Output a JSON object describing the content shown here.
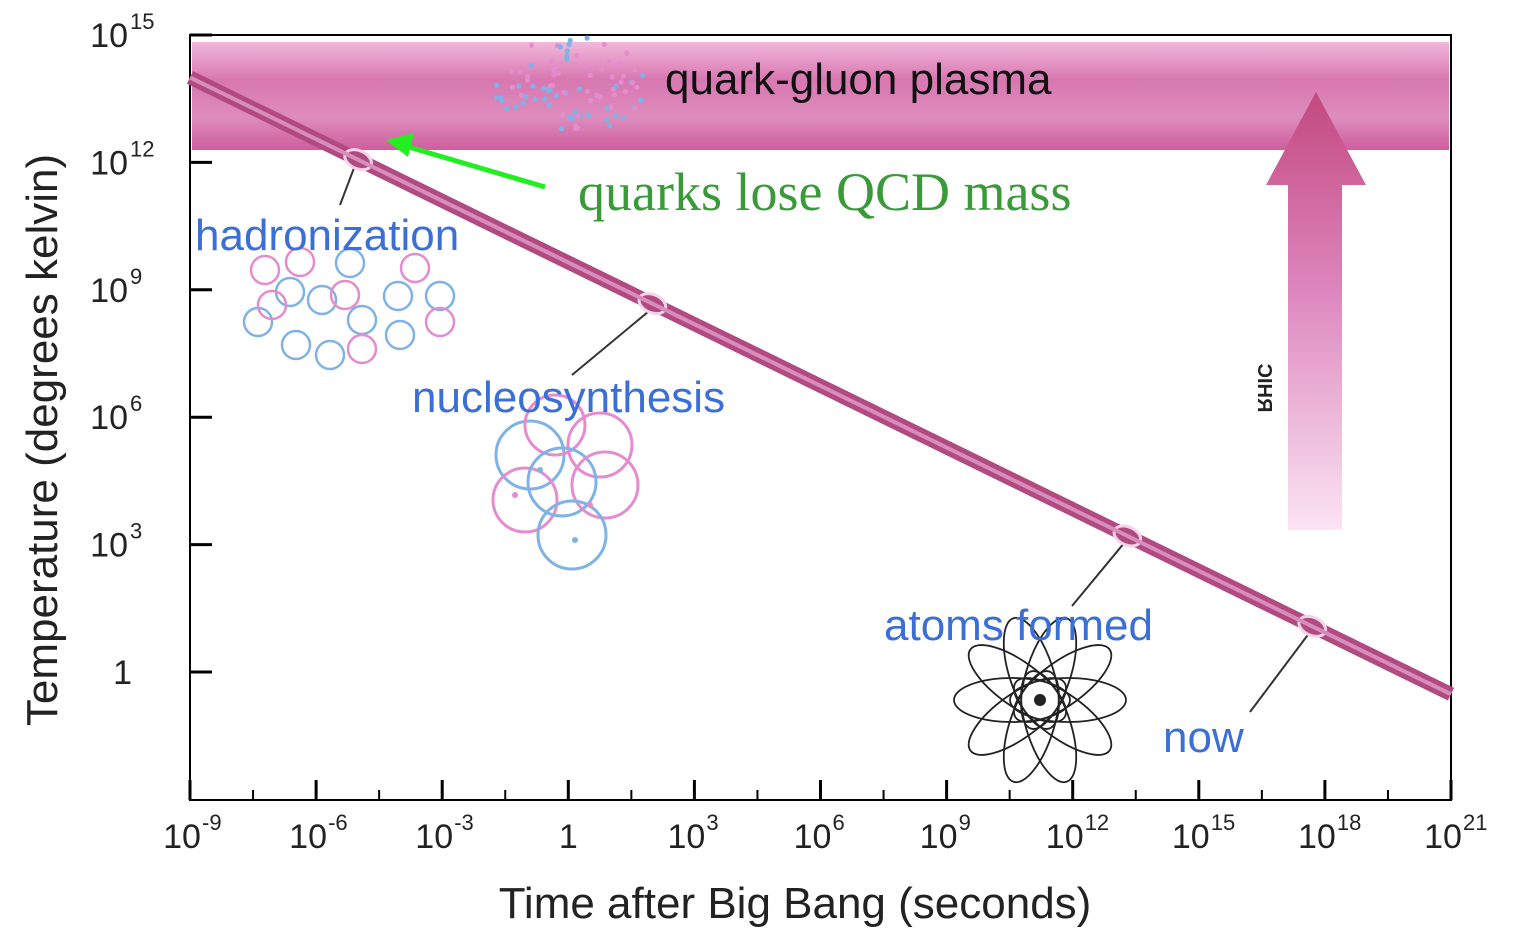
{
  "chart_data": {
    "type": "line",
    "xlabel": "Time after Big Bang (seconds)",
    "ylabel": "Temperature (degrees kelvin)",
    "x_scale": "log",
    "y_scale": "log",
    "xlim": [
      "1e-9",
      "1e21"
    ],
    "ylim": [
      "0.01",
      "1e15"
    ],
    "x_ticks": [
      {
        "value": "1e-9",
        "base": "10",
        "exp": "-9"
      },
      {
        "value": "1e-6",
        "base": "10",
        "exp": "-6"
      },
      {
        "value": "1e-3",
        "base": "10",
        "exp": "-3"
      },
      {
        "value": "1",
        "base": "1",
        "exp": ""
      },
      {
        "value": "1e3",
        "base": "10",
        "exp": "3"
      },
      {
        "value": "1e6",
        "base": "10",
        "exp": "6"
      },
      {
        "value": "1e9",
        "base": "10",
        "exp": "9"
      },
      {
        "value": "1e12",
        "base": "10",
        "exp": "12"
      },
      {
        "value": "1e15",
        "base": "10",
        "exp": "15"
      },
      {
        "value": "1e18",
        "base": "10",
        "exp": "18"
      },
      {
        "value": "1e21",
        "base": "10",
        "exp": "21"
      }
    ],
    "y_ticks": [
      {
        "value": "1",
        "base": "1",
        "exp": ""
      },
      {
        "value": "1e3",
        "base": "10",
        "exp": "3"
      },
      {
        "value": "1e6",
        "base": "10",
        "exp": "6"
      },
      {
        "value": "1e9",
        "base": "10",
        "exp": "9"
      },
      {
        "value": "1e12",
        "base": "10",
        "exp": "12"
      },
      {
        "value": "1e15",
        "base": "10",
        "exp": "15"
      }
    ],
    "series": [
      {
        "points": [
          {
            "x": "1e-9",
            "y": "1e14"
          },
          {
            "x": "1e21",
            "y": "0.3"
          }
        ]
      }
    ],
    "regions": [
      {
        "label": "quark-gluon plasma",
        "y_from": "2e12",
        "y_to": "1e15",
        "color": "#d35c9b"
      }
    ],
    "events": [
      {
        "label": "hadronization",
        "x": "1e-5",
        "y": "1.5e12"
      },
      {
        "label": "nucleosynthesis",
        "x": "100",
        "y": "1e9"
      },
      {
        "label": "atoms formed",
        "x": "2e13",
        "y": "3000"
      },
      {
        "label": "now",
        "x": "5e17",
        "y": "3"
      }
    ],
    "annotations": [
      {
        "label": "quarks lose QCD mass",
        "color": "#3a9a3a",
        "arrow_color": "#22ee22"
      },
      {
        "label": "RHIC"
      }
    ],
    "grid": false,
    "colors": {
      "line": "#b04a80",
      "plasma_band": "#d35c9b",
      "event_label": "#3b6fd6",
      "axis": "#000000",
      "illustration_blue": "#7fb2e5",
      "illustration_pink": "#e58ccf"
    }
  }
}
